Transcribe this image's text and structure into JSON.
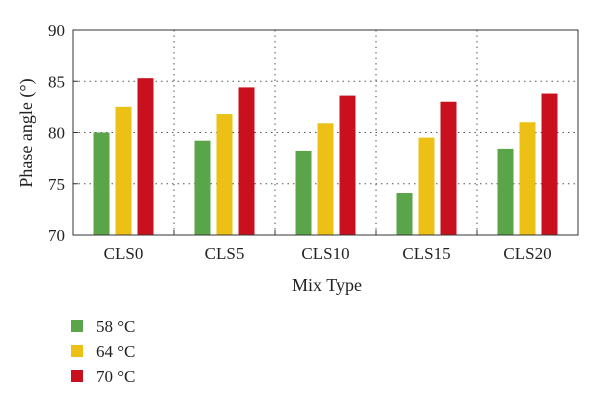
{
  "chart_data": {
    "type": "bar",
    "xlabel": "Mix Type",
    "ylabel": "Phase angle (°)",
    "ylim": [
      70,
      90
    ],
    "yticks": [
      70,
      75,
      80,
      85,
      90
    ],
    "categories": [
      "CLS0",
      "CLS5",
      "CLS10",
      "CLS15",
      "CLS20"
    ],
    "series": [
      {
        "name": "58 °C",
        "color": "#5aa44a",
        "values": [
          80.0,
          79.2,
          78.2,
          74.1,
          78.4
        ]
      },
      {
        "name": "64 °C",
        "color": "#ecc014",
        "values": [
          82.5,
          81.8,
          80.9,
          79.5,
          81.0
        ]
      },
      {
        "name": "70 °C",
        "color": "#c8101e",
        "values": [
          85.3,
          84.4,
          83.6,
          83.0,
          83.8
        ]
      }
    ],
    "grid": true,
    "legend_position": "bottom-left"
  }
}
